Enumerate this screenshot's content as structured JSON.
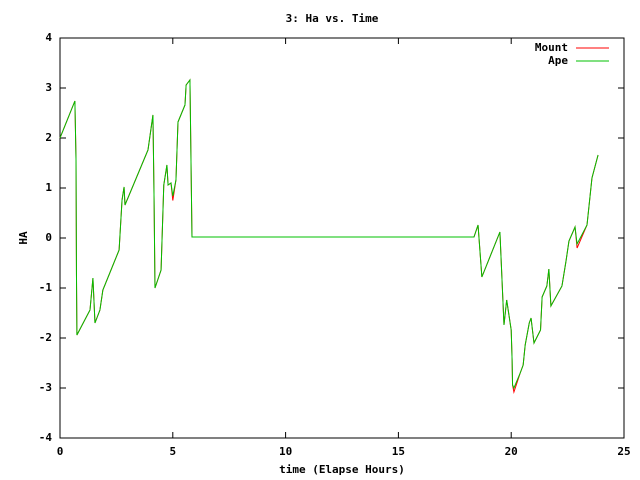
{
  "chart_data": {
    "type": "line",
    "title": "3: Ha vs. Time",
    "x_label": "time (Elapse Hours)",
    "y_label": "HA",
    "xlim": [
      0,
      25
    ],
    "ylim": [
      -4,
      4
    ],
    "xticks": [
      0,
      5,
      10,
      15,
      20,
      25
    ],
    "yticks": [
      -4,
      -3,
      -2,
      -1,
      0,
      1,
      2,
      3,
      4
    ],
    "grid": false,
    "legend": "top-right",
    "x": [
      0,
      0.66,
      0.71,
      0.73,
      0.75,
      1.33,
      1.46,
      1.55,
      1.77,
      1.9,
      2.62,
      2.75,
      2.84,
      2.88,
      3.9,
      4.12,
      4.17,
      4.21,
      4.48,
      4.6,
      4.74,
      4.79,
      4.92,
      5.0,
      5.14,
      5.23,
      5.54,
      5.59,
      5.76,
      5.85,
      18.35,
      18.53,
      18.7,
      19.5,
      19.68,
      19.8,
      20.0,
      20.04,
      20.06,
      20.12,
      20.4,
      20.53,
      20.62,
      20.8,
      20.88,
      21.01,
      21.3,
      21.37,
      21.58,
      21.67,
      21.76,
      22.25,
      22.43,
      22.56,
      22.83,
      22.92,
      23.36,
      23.58,
      23.85
    ],
    "series": [
      {
        "name": "Mount",
        "color": "#ff0000",
        "values": [
          2.0,
          2.74,
          1.56,
          -0.74,
          -1.94,
          -1.44,
          -0.8,
          -1.7,
          -1.44,
          -1.04,
          -0.24,
          0.76,
          1.02,
          0.66,
          1.76,
          2.46,
          0.76,
          -1.0,
          -0.64,
          1.06,
          1.46,
          1.06,
          1.1,
          0.75,
          1.16,
          2.32,
          2.66,
          3.06,
          3.16,
          0.02,
          0.02,
          0.26,
          -0.78,
          0.12,
          -1.74,
          -1.24,
          -1.84,
          -2.44,
          -2.94,
          -3.08,
          -2.7,
          -2.54,
          -2.14,
          -1.7,
          -1.6,
          -2.1,
          -1.84,
          -1.18,
          -0.96,
          -0.62,
          -1.36,
          -0.96,
          -0.46,
          -0.06,
          0.22,
          -0.2,
          0.26,
          1.2,
          1.66
        ]
      },
      {
        "name": "Ape",
        "color": "#00c000",
        "values": [
          2.0,
          2.74,
          1.56,
          -0.74,
          -1.94,
          -1.44,
          -0.8,
          -1.7,
          -1.44,
          -1.04,
          -0.24,
          0.76,
          1.02,
          0.66,
          1.76,
          2.46,
          0.76,
          -1.0,
          -0.64,
          1.06,
          1.46,
          1.06,
          1.1,
          0.84,
          1.16,
          2.32,
          2.66,
          3.06,
          3.16,
          0.02,
          0.02,
          0.26,
          -0.78,
          0.12,
          -1.74,
          -1.24,
          -1.84,
          -2.44,
          -2.94,
          -3.0,
          -2.7,
          -2.54,
          -2.14,
          -1.7,
          -1.6,
          -2.1,
          -1.84,
          -1.18,
          -0.96,
          -0.62,
          -1.36,
          -0.96,
          -0.46,
          -0.06,
          0.22,
          -0.12,
          0.26,
          1.2,
          1.66
        ]
      }
    ]
  }
}
